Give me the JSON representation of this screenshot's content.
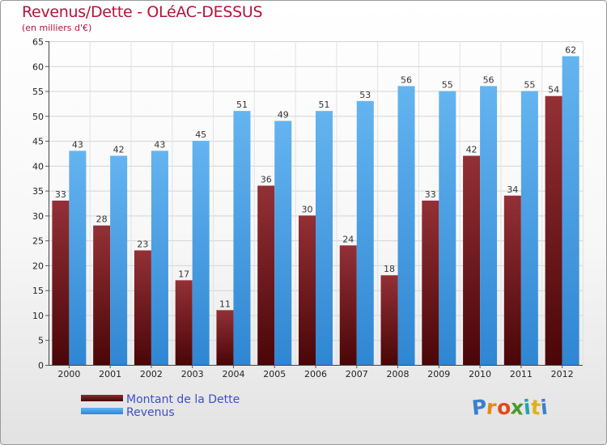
{
  "title": "Revenus/Dette - OLéAC-DESSUS",
  "subtitle": "(en milliers d'€)",
  "chart_data": {
    "type": "bar",
    "title": "Revenus/Dette - OLéAC-DESSUS",
    "subtitle": "(en milliers d'€)",
    "xlabel": "",
    "ylabel": "",
    "ylim": [
      0,
      65
    ],
    "yticks": [
      0,
      5,
      10,
      15,
      20,
      25,
      30,
      35,
      40,
      45,
      50,
      55,
      60,
      65
    ],
    "grid": true,
    "categories": [
      "2000",
      "2001",
      "2002",
      "2003",
      "2004",
      "2005",
      "2006",
      "2007",
      "2008",
      "2009",
      "2010",
      "2011",
      "2012"
    ],
    "series": [
      {
        "name": "Montant de la Dette",
        "color": "#7a1a1e",
        "values": [
          33,
          28,
          23,
          17,
          11,
          36,
          30,
          24,
          18,
          33,
          42,
          34,
          54
        ]
      },
      {
        "name": "Revenus",
        "color": "#4ea3e6",
        "values": [
          43,
          42,
          43,
          45,
          51,
          49,
          51,
          53,
          56,
          55,
          56,
          55,
          62
        ]
      }
    ],
    "legend_position": "bottom-left"
  },
  "logo": {
    "letters": [
      "P",
      "r",
      "o",
      "x",
      "i",
      "t",
      "i"
    ],
    "colors": [
      "#3a7fd0",
      "#e08a1a",
      "#e04a1a",
      "#4a9a2a",
      "#2aa0b0",
      "#e0b01a",
      "#3a7fd0"
    ]
  }
}
